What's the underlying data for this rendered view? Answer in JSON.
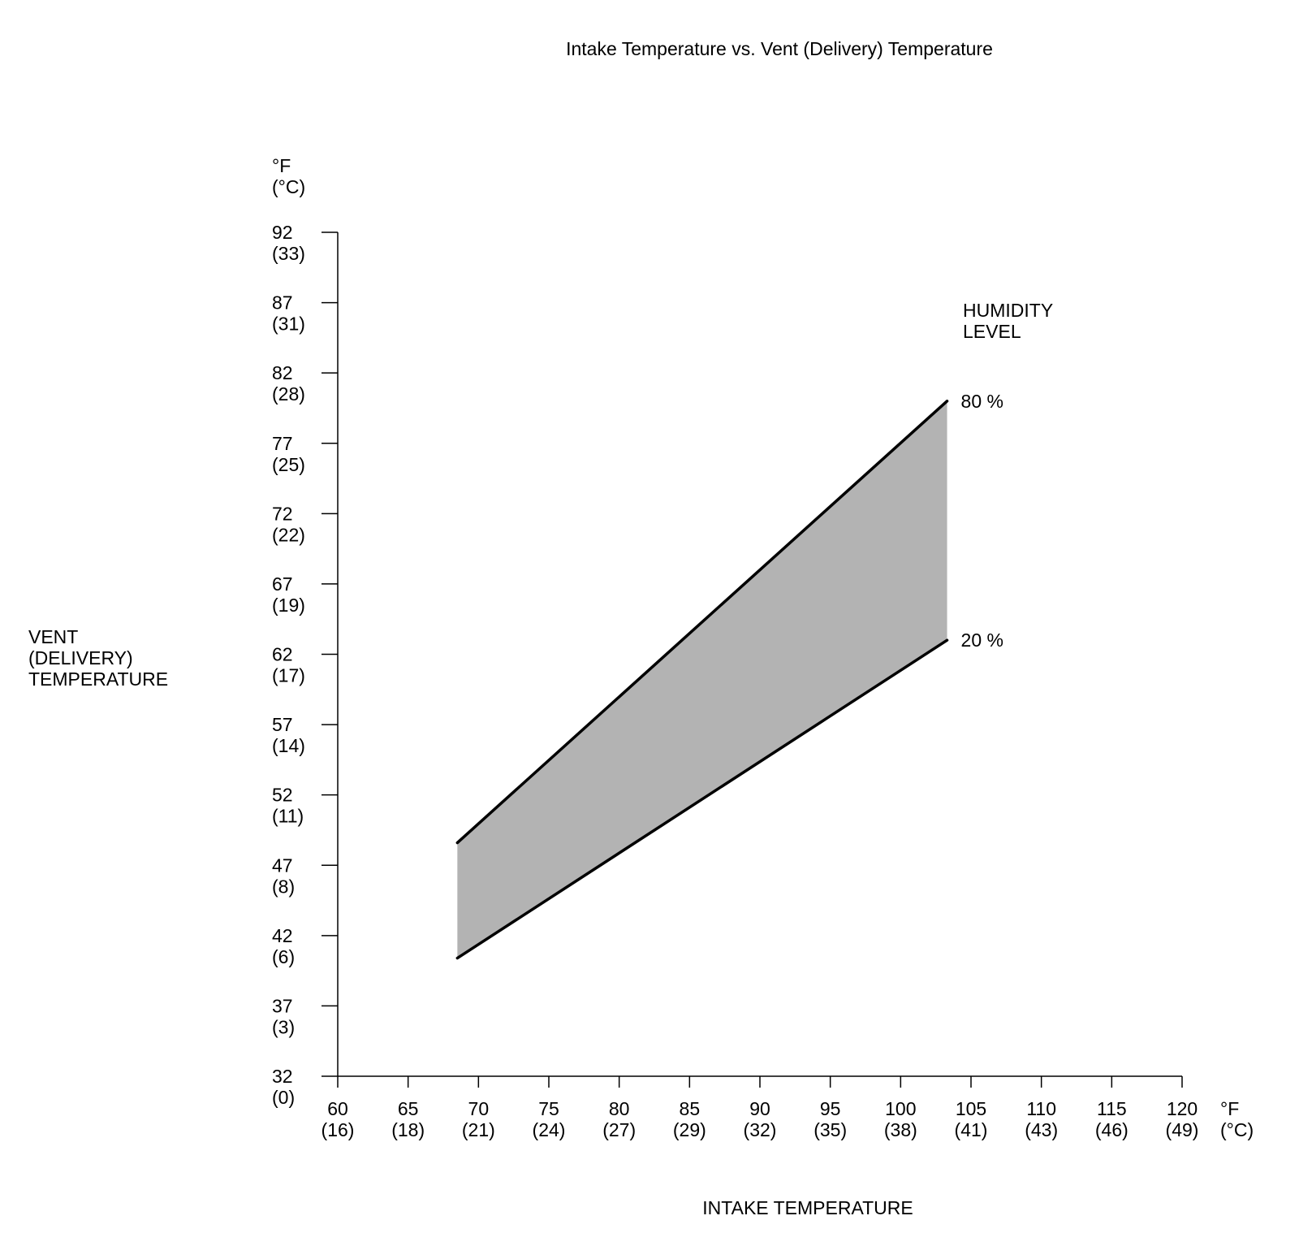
{
  "chart_data": {
    "type": "area",
    "title": "Intake Temperature vs. Vent (Delivery) Temperature",
    "xlabel": "INTAKE TEMPERATURE",
    "ylabel": [
      "VENT",
      "(DELIVERY)",
      "TEMPERATURE"
    ],
    "x_unit": [
      "°F",
      "(°C)"
    ],
    "y_unit": [
      "°F",
      "(°C)"
    ],
    "xlim": [
      60,
      120
    ],
    "ylim": [
      32,
      92
    ],
    "x_ticks": [
      {
        "f": "60",
        "c": "(16)",
        "v": 60
      },
      {
        "f": "65",
        "c": "(18)",
        "v": 65
      },
      {
        "f": "70",
        "c": "(21)",
        "v": 70
      },
      {
        "f": "75",
        "c": "(24)",
        "v": 75
      },
      {
        "f": "80",
        "c": "(27)",
        "v": 80
      },
      {
        "f": "85",
        "c": "(29)",
        "v": 85
      },
      {
        "f": "90",
        "c": "(32)",
        "v": 90
      },
      {
        "f": "95",
        "c": "(35)",
        "v": 95
      },
      {
        "f": "100",
        "c": "(38)",
        "v": 100
      },
      {
        "f": "105",
        "c": "(41)",
        "v": 105
      },
      {
        "f": "110",
        "c": "(43)",
        "v": 110
      },
      {
        "f": "115",
        "c": "(46)",
        "v": 115
      },
      {
        "f": "120",
        "c": "(49)",
        "v": 120
      }
    ],
    "y_ticks": [
      {
        "f": "92",
        "c": "(33)",
        "v": 92
      },
      {
        "f": "87",
        "c": "(31)",
        "v": 87
      },
      {
        "f": "82",
        "c": "(28)",
        "v": 82
      },
      {
        "f": "77",
        "c": "(25)",
        "v": 77
      },
      {
        "f": "72",
        "c": "(22)",
        "v": 72
      },
      {
        "f": "67",
        "c": "(19)",
        "v": 67
      },
      {
        "f": "62",
        "c": "(17)",
        "v": 62
      },
      {
        "f": "57",
        "c": "(14)",
        "v": 57
      },
      {
        "f": "52",
        "c": "(11)",
        "v": 52
      },
      {
        "f": "47",
        "c": "(8)",
        "v": 47
      },
      {
        "f": "42",
        "c": "(6)",
        "v": 42
      },
      {
        "f": "37",
        "c": "(3)",
        "v": 37
      },
      {
        "f": "32",
        "c": "(0)",
        "v": 32
      }
    ],
    "legend_title": [
      "HUMIDITY",
      "LEVEL"
    ],
    "series": [
      {
        "name": "80 %",
        "x": [
          68.5,
          103.3
        ],
        "y": [
          48.6,
          80.0
        ]
      },
      {
        "name": "20 %",
        "x": [
          68.5,
          103.3
        ],
        "y": [
          40.4,
          63.0
        ]
      }
    ],
    "fill_color": "#b3b3b3",
    "line_color": "#000000",
    "grid": false
  }
}
